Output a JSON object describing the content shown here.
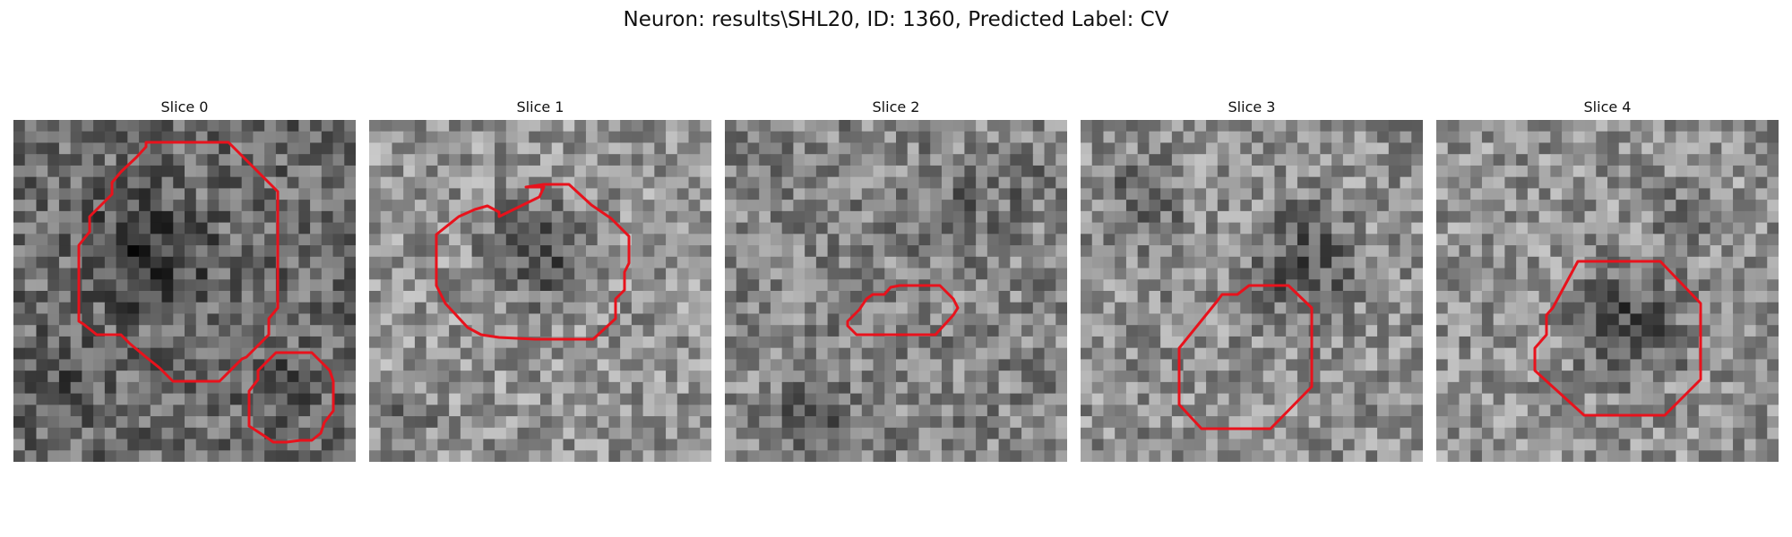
{
  "figure": {
    "title": "Neuron: results\\SHL20, ID: 1360, Predicted Label: CV"
  },
  "contour_color": "#e8121c",
  "grid_size": 30,
  "panels": [
    {
      "title": "Slice 0",
      "image": "grayscale microscopy patch with two red contours",
      "base_gray": 0.42,
      "seed": 17
    },
    {
      "title": "Slice 1",
      "image": "grayscale microscopy patch with one red contour",
      "base_gray": 0.58,
      "seed": 43
    },
    {
      "title": "Slice 2",
      "image": "grayscale microscopy patch with one small red contour",
      "base_gray": 0.52,
      "seed": 71
    },
    {
      "title": "Slice 3",
      "image": "grayscale microscopy patch with one red contour",
      "base_gray": 0.56,
      "seed": 97
    },
    {
      "title": "Slice 4",
      "image": "grayscale microscopy patch with one red contour",
      "base_gray": 0.57,
      "seed": 131
    }
  ]
}
